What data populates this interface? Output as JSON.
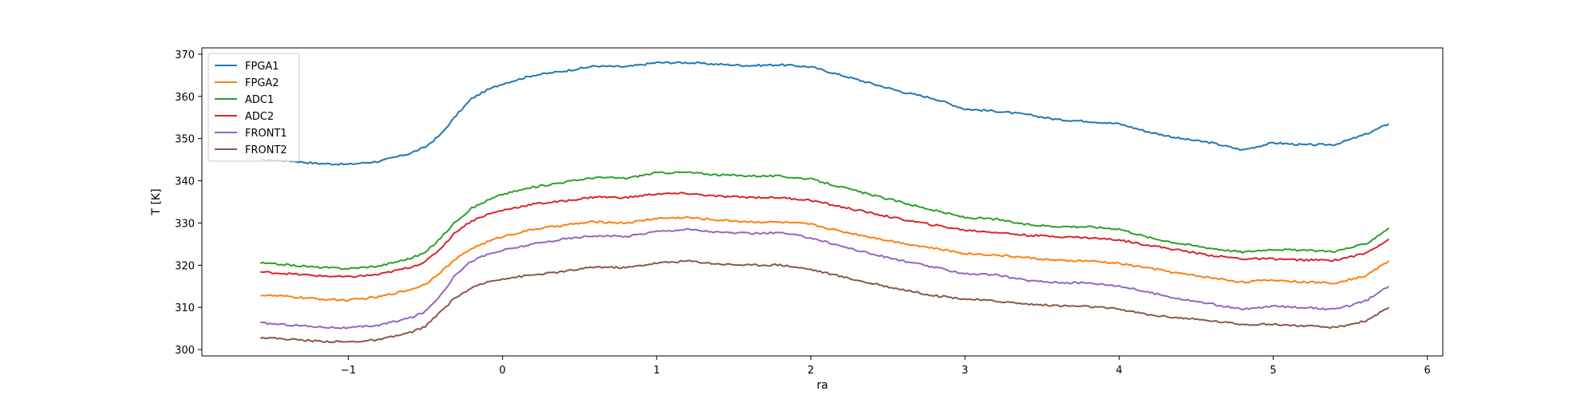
{
  "chart_data": {
    "type": "line",
    "xlabel": "ra",
    "ylabel": "T [K]",
    "xlim": [
      -1.95,
      6.1
    ],
    "ylim": [
      298.5,
      371.5
    ],
    "x_ticks": [
      -1,
      0,
      1,
      2,
      3,
      4,
      5,
      6
    ],
    "y_ticks": [
      300,
      310,
      320,
      330,
      340,
      350,
      360,
      370
    ],
    "x_tick_labels": [
      "−1",
      "0",
      "1",
      "2",
      "3",
      "4",
      "5",
      "6"
    ],
    "y_tick_labels": [
      "300",
      "310",
      "320",
      "330",
      "340",
      "350",
      "360",
      "370"
    ],
    "grid": false,
    "legend_position": "top-left",
    "x": [
      -1.57,
      -1.4,
      -1.2,
      -1.0,
      -0.8,
      -0.6,
      -0.5,
      -0.4,
      -0.3,
      -0.2,
      -0.1,
      0.0,
      0.2,
      0.4,
      0.6,
      0.8,
      1.0,
      1.2,
      1.4,
      1.6,
      1.8,
      2.0,
      2.2,
      2.4,
      2.6,
      2.8,
      3.0,
      3.2,
      3.4,
      3.6,
      3.8,
      4.0,
      4.2,
      4.4,
      4.6,
      4.8,
      5.0,
      5.2,
      5.4,
      5.6,
      5.75
    ],
    "series": [
      {
        "name": "FPGA1",
        "color": "#1f77b4",
        "values": [
          345.0,
          344.8,
          344.1,
          343.9,
          344.6,
          346.5,
          348.0,
          351.0,
          355.5,
          359.5,
          361.5,
          363.0,
          365.0,
          366.0,
          367.2,
          367.0,
          368.0,
          368.0,
          367.6,
          367.3,
          367.5,
          367.0,
          365.0,
          363.0,
          361.0,
          359.5,
          357.0,
          356.5,
          355.7,
          354.5,
          354.1,
          353.5,
          351.5,
          350.0,
          349.0,
          347.3,
          349.0,
          348.5,
          348.6,
          351.0,
          353.5
        ]
      },
      {
        "name": "FPGA2",
        "color": "#ff7f0e",
        "values": [
          312.9,
          312.6,
          312.0,
          311.7,
          312.5,
          314.2,
          315.5,
          318.5,
          321.5,
          324.0,
          325.5,
          326.8,
          328.5,
          329.5,
          330.3,
          330.0,
          331.1,
          331.3,
          330.7,
          330.3,
          330.2,
          329.7,
          328.0,
          326.6,
          325.2,
          324.0,
          322.8,
          322.4,
          321.8,
          321.1,
          321.0,
          320.4,
          319.3,
          318.0,
          317.0,
          316.0,
          316.5,
          316.0,
          315.8,
          317.5,
          321.0
        ]
      },
      {
        "name": "ADC1",
        "color": "#2ca02c",
        "values": [
          320.5,
          320.1,
          319.5,
          319.2,
          319.8,
          321.6,
          323.0,
          326.5,
          330.5,
          333.5,
          335.3,
          336.8,
          338.5,
          339.7,
          340.8,
          340.6,
          341.9,
          342.0,
          341.4,
          341.2,
          341.1,
          340.4,
          338.5,
          336.6,
          334.8,
          333.0,
          331.3,
          330.9,
          329.6,
          329.2,
          329.1,
          328.6,
          326.5,
          325.1,
          324.0,
          323.1,
          323.8,
          323.5,
          323.3,
          325.0,
          328.8
        ]
      },
      {
        "name": "ADC2",
        "color": "#d62728",
        "values": [
          318.4,
          318.0,
          317.5,
          317.2,
          317.8,
          319.5,
          320.8,
          324.0,
          328.0,
          330.5,
          332.0,
          333.0,
          334.5,
          335.2,
          336.2,
          336.0,
          336.9,
          337.0,
          336.3,
          336.1,
          336.0,
          335.4,
          333.8,
          332.3,
          330.8,
          329.5,
          328.3,
          327.8,
          327.1,
          326.8,
          326.5,
          326.0,
          324.7,
          323.5,
          322.3,
          321.5,
          321.5,
          321.2,
          321.2,
          322.8,
          326.2
        ]
      },
      {
        "name": "FRONT1",
        "color": "#9467bd",
        "values": [
          306.3,
          305.9,
          305.4,
          305.1,
          305.8,
          307.5,
          309.0,
          313.0,
          318.0,
          321.0,
          322.5,
          323.5,
          325.0,
          326.2,
          327.0,
          326.8,
          328.0,
          328.5,
          327.8,
          327.5,
          327.7,
          326.5,
          324.5,
          322.6,
          321.0,
          319.5,
          318.0,
          317.7,
          316.4,
          315.9,
          315.8,
          315.1,
          313.5,
          312.0,
          310.8,
          309.5,
          310.3,
          310.0,
          309.5,
          311.5,
          315.0
        ]
      },
      {
        "name": "FRONT2",
        "color": "#8c564b",
        "values": [
          302.9,
          302.5,
          302.0,
          301.8,
          302.3,
          304.0,
          305.5,
          309.0,
          312.5,
          314.5,
          316.0,
          316.8,
          317.7,
          318.5,
          319.6,
          319.4,
          320.5,
          321.0,
          320.3,
          320.0,
          320.1,
          319.0,
          317.3,
          315.6,
          314.2,
          312.8,
          312.0,
          311.5,
          310.8,
          310.4,
          310.2,
          309.6,
          308.2,
          307.5,
          306.8,
          306.0,
          306.0,
          305.6,
          305.2,
          306.8,
          310.0
        ]
      }
    ]
  }
}
